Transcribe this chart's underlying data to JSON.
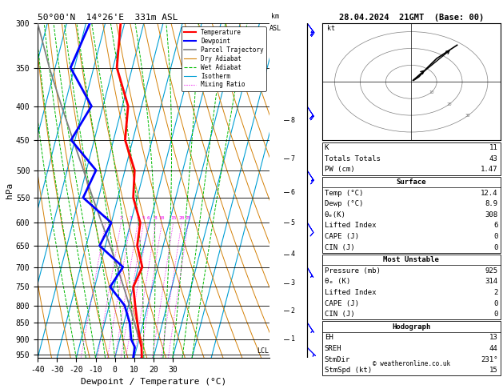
{
  "title_left": "50°00'N  14°26'E  331m ASL",
  "title_right": "28.04.2024  21GMT  (Base: 00)",
  "xlabel": "Dewpoint / Temperature (°C)",
  "ylabel_left": "hPa",
  "pressure_ticks": [
    300,
    350,
    400,
    450,
    500,
    550,
    600,
    650,
    700,
    750,
    800,
    850,
    900,
    950
  ],
  "temp_range": [
    -40,
    35
  ],
  "pmin": 300,
  "pmax": 960,
  "isotherm_color": "#009FD4",
  "dry_adiabat_color": "#D4820A",
  "wet_adiabat_color": "#00BB00",
  "mixing_ratio_color": "#EE00EE",
  "mixing_ratio_values": [
    1,
    2,
    3,
    4,
    5,
    6,
    8,
    10,
    15,
    20,
    25
  ],
  "temp_profile_pressure": [
    960,
    925,
    900,
    850,
    800,
    750,
    700,
    650,
    600,
    550,
    500,
    450,
    400,
    350,
    300
  ],
  "temp_profile_temp": [
    14.0,
    12.4,
    10.5,
    7.0,
    3.5,
    0.0,
    2.0,
    -3.5,
    -5.0,
    -12.0,
    -15.0,
    -24.0,
    -27.0,
    -38.0,
    -42.0
  ],
  "dewp_profile_pressure": [
    960,
    925,
    900,
    850,
    800,
    750,
    700,
    650,
    600,
    550,
    500,
    450,
    400,
    350,
    300
  ],
  "dewp_profile_temp": [
    9.5,
    8.9,
    6.0,
    3.0,
    -2.0,
    -12.0,
    -8.0,
    -23.0,
    -20.0,
    -38.0,
    -35.0,
    -52.0,
    -46.0,
    -62.0,
    -58.0
  ],
  "parcel_pressure": [
    960,
    925,
    900,
    850,
    800,
    750,
    700,
    650,
    600,
    550,
    500,
    450,
    400,
    350,
    300
  ],
  "parcel_temp": [
    14.0,
    12.4,
    10.0,
    5.5,
    0.5,
    -5.0,
    -11.0,
    -17.5,
    -25.0,
    -33.0,
    -41.5,
    -51.0,
    -61.5,
    -73.0,
    -85.0
  ],
  "lcl_pressure": 938,
  "background_color": "#FFFFFF",
  "km_ticks": [
    1,
    2,
    3,
    4,
    5,
    6,
    7,
    8
  ],
  "km_pressures": [
    900,
    815,
    740,
    670,
    600,
    540,
    480,
    420
  ],
  "wind_barbs": [
    {
      "p": 300,
      "u": -15,
      "v": 20,
      "color": "blue"
    },
    {
      "p": 400,
      "u": -10,
      "v": 15,
      "color": "blue"
    },
    {
      "p": 500,
      "u": -8,
      "v": 12,
      "color": "blue"
    },
    {
      "p": 600,
      "u": -5,
      "v": 8,
      "color": "blue"
    },
    {
      "p": 700,
      "u": -3,
      "v": 5,
      "color": "blue"
    },
    {
      "p": 850,
      "u": -2,
      "v": 3,
      "color": "blue"
    },
    {
      "p": 925,
      "u": -2,
      "v": 2,
      "color": "blue"
    }
  ],
  "hodo_u": [
    1,
    3,
    6,
    10,
    14,
    18
  ],
  "hodo_v": [
    1,
    3,
    8,
    14,
    18,
    22
  ],
  "storm_u1": 6,
  "storm_v1": 8,
  "storm_u2": 16,
  "storm_v2": 20
}
